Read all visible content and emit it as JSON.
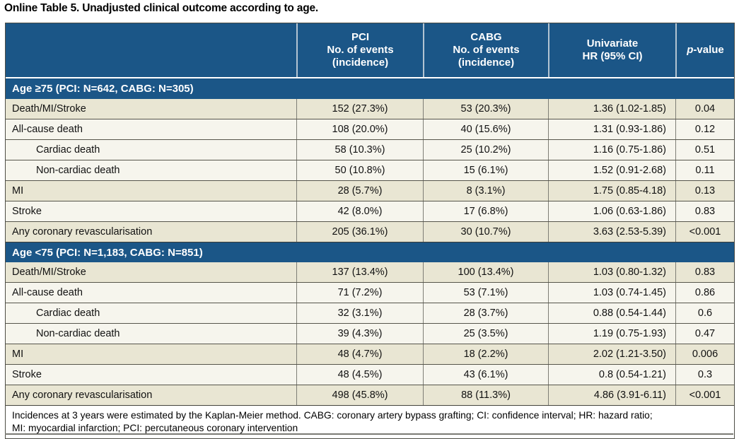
{
  "title": "Online Table 5. Unadjusted clinical outcome according to age.",
  "colors": {
    "header_blue": "#1B5687",
    "row_dark_beige": "#E9E6D3",
    "row_light": "#F6F5ED",
    "header_text": "#FFFFFF",
    "body_text": "#111111"
  },
  "header": {
    "outcome_col": "",
    "pci": [
      "PCI",
      "No. of events",
      "(incidence)"
    ],
    "cabg": [
      "CABG",
      "No. of events",
      "(incidence)"
    ],
    "univariate": [
      "Univariate",
      "HR (95% CI)"
    ],
    "pvalue_italic": "p",
    "pvalue_rest": "-value"
  },
  "sections": [
    {
      "header": "Age ≥75 (PCI: N=642, CABG: N=305)",
      "rows": [
        {
          "label": "Death/MI/Stroke",
          "pci": "152 (27.3%)",
          "cabg": "53 (20.3%)",
          "hr": "1.36 (1.02-1.85)",
          "p": "0.04"
        },
        {
          "label": "All-cause death",
          "pci": "108 (20.0%)",
          "cabg": "40 (15.6%)",
          "hr": "1.31 (0.93-1.86)",
          "p": "0.12"
        },
        {
          "label": "Cardiac death",
          "pci": "58 (10.3%)",
          "cabg": "25 (10.2%)",
          "hr": "1.16 (0.75-1.86)",
          "p": "0.51"
        },
        {
          "label": "Non-cardiac death",
          "pci": "50 (10.8%)",
          "cabg": "15 (6.1%)",
          "hr": "1.52 (0.91-2.68)",
          "p": "0.11"
        },
        {
          "label": "MI",
          "pci": "28 (5.7%)",
          "cabg": "8 (3.1%)",
          "hr": "1.75 (0.85-4.18)",
          "p": "0.13"
        },
        {
          "label": "Stroke",
          "pci": "42 (8.0%)",
          "cabg": "17 (6.8%)",
          "hr": "1.06 (0.63-1.86)",
          "p": "0.83"
        },
        {
          "label": "Any coronary revascularisation",
          "pci": "205 (36.1%)",
          "cabg": "30 (10.7%)",
          "hr": "3.63 (2.53-5.39)",
          "p": "<0.001"
        }
      ]
    },
    {
      "header": "Age <75 (PCI: N=1,183, CABG: N=851)",
      "rows": [
        {
          "label": "Death/MI/Stroke",
          "pci": "137 (13.4%)",
          "cabg": "100 (13.4%)",
          "hr": "1.03 (0.80-1.32)",
          "p": "0.83"
        },
        {
          "label": "All-cause death",
          "pci": "71 (7.2%)",
          "cabg": "53 (7.1%)",
          "hr": "1.03 (0.74-1.45)",
          "p": "0.86"
        },
        {
          "label": "Cardiac death",
          "pci": "32 (3.1%)",
          "cabg": "28 (3.7%)",
          "hr": "0.88 (0.54-1.44)",
          "p": "0.6"
        },
        {
          "label": "Non-cardiac death",
          "pci": "39 (4.3%)",
          "cabg": "25 (3.5%)",
          "hr": "1.19 (0.75-1.93)",
          "p": "0.47"
        },
        {
          "label": "MI",
          "pci": "48 (4.7%)",
          "cabg": "18 (2.2%)",
          "hr": "2.02 (1.21-3.50)",
          "p": "0.006"
        },
        {
          "label": "Stroke",
          "pci": "48 (4.5%)",
          "cabg": "43 (6.1%)",
          "hr": "0.8 (0.54-1.21)",
          "p": "0.3"
        },
        {
          "label": "Any coronary revascularisation",
          "pci": "498 (45.8%)",
          "cabg": "88 (11.3%)",
          "hr": "4.86 (3.91-6.11)",
          "p": "<0.001"
        }
      ]
    }
  ],
  "footnote": {
    "line1": "Incidences at 3 years were estimated by the Kaplan-Meier method. CABG: coronary artery bypass grafting; CI: confidence interval; HR: hazard ratio;",
    "line2": "MI: myocardial infarction; PCI: percutaneous coronary intervention"
  }
}
